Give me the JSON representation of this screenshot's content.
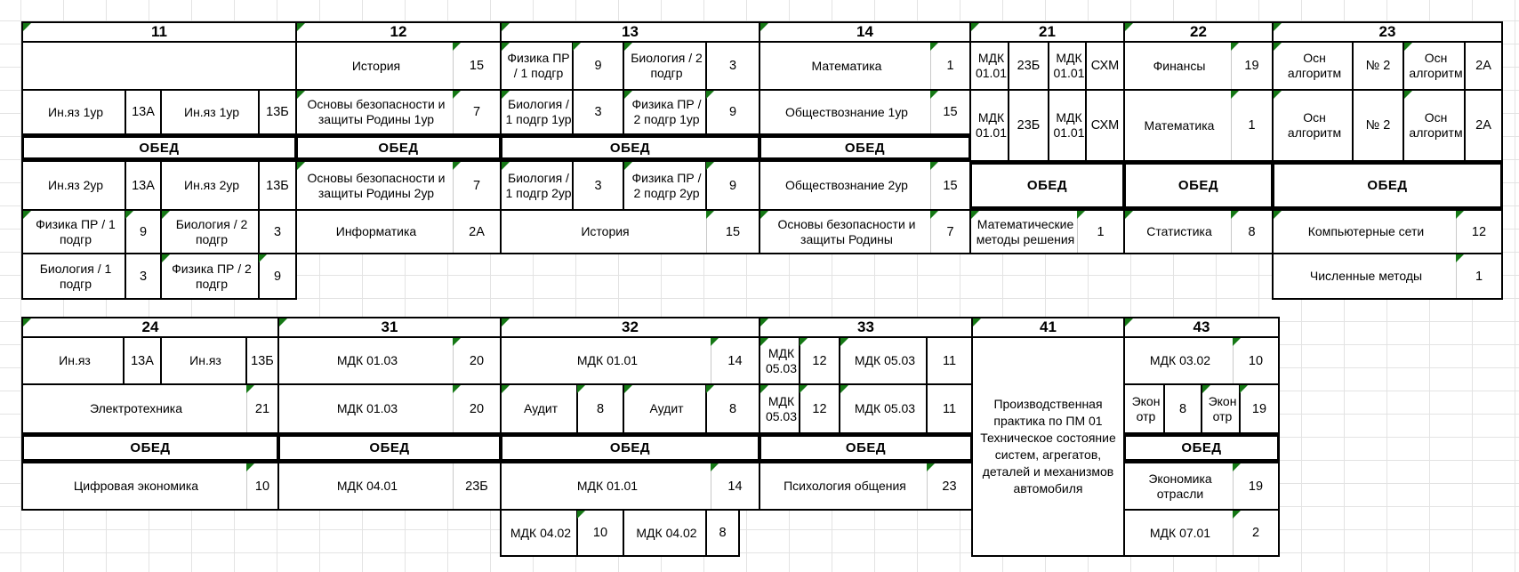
{
  "sheet": {
    "lunch_label": "ОБЕД",
    "colors": {
      "border": "#000000",
      "grid": "#e3e3e3",
      "marker_green": "#157815",
      "background": "#ffffff"
    }
  },
  "top_block": {
    "groups": [
      {
        "id": "11",
        "header_marker": 1,
        "lessons": [
          {
            "row": "r1",
            "type": "blank"
          },
          {
            "row": "r2",
            "type": "pair",
            "cells": [
              {
                "t": "Ин.яз 1ур",
                "room": "13А"
              },
              {
                "t": "Ин.яз 1ур",
                "room": "13Б"
              }
            ]
          },
          {
            "row": "lunchA",
            "type": "lunch"
          },
          {
            "row": "r4",
            "type": "pair",
            "cells": [
              {
                "t": "Ин.яз 2ур",
                "room": "13А"
              },
              {
                "t": "Ин.яз 2ур",
                "room": "13Б"
              }
            ]
          },
          {
            "row": "r5",
            "type": "pair",
            "cells": [
              {
                "t": "Физика ПР / 1 подгр",
                "room": "9",
                "ms": 1,
                "mr": 1
              },
              {
                "t": "Биология / 2 подгр",
                "room": "3",
                "ms": 1
              }
            ]
          },
          {
            "row": "r6",
            "type": "pair",
            "cells": [
              {
                "t": "Биология / 1 подгр",
                "room": "3"
              },
              {
                "t": "Физика ПР / 2 подгр",
                "room": "9",
                "ms": 1,
                "mr": 1
              }
            ]
          }
        ]
      },
      {
        "id": "12",
        "header_marker": 1,
        "lessons": [
          {
            "row": "r1",
            "type": "single",
            "cells": [
              {
                "t": "История",
                "room": "15",
                "mr": 1
              }
            ]
          },
          {
            "row": "r2",
            "type": "single",
            "cells": [
              {
                "t": "Основы безопасности и защиты Родины 1ур",
                "room": "7",
                "ms": 1,
                "mr": 1
              }
            ]
          },
          {
            "row": "lunchA",
            "type": "lunch"
          },
          {
            "row": "r4",
            "type": "single",
            "cells": [
              {
                "t": "Основы безопасности и защиты Родины 2ур",
                "room": "7",
                "ms": 1,
                "mr": 1
              }
            ]
          },
          {
            "row": "r5",
            "type": "single",
            "cells": [
              {
                "t": "Информатика",
                "room": "2А"
              }
            ]
          }
        ]
      },
      {
        "id": "13",
        "header_marker": 1,
        "lessons": [
          {
            "row": "r1",
            "type": "pair",
            "cells": [
              {
                "t": "Физика ПР / 1 подгр",
                "room": "9",
                "ms": 1,
                "mr": 1
              },
              {
                "t": "Биология / 2 подгр",
                "room": "3",
                "ms": 1
              }
            ]
          },
          {
            "row": "r2",
            "type": "pair",
            "cells": [
              {
                "t": "Биология / 1 подгр 1ур",
                "room": "3",
                "ms": 1
              },
              {
                "t": "Физика ПР / 2 подгр 1ур",
                "room": "9",
                "ms": 1,
                "mr": 1
              }
            ]
          },
          {
            "row": "lunchA",
            "type": "lunch"
          },
          {
            "row": "r4",
            "type": "pair",
            "cells": [
              {
                "t": "Биология / 1 подгр 2ур",
                "room": "3",
                "ms": 1
              },
              {
                "t": "Физика ПР / 2 подгр 2ур",
                "room": "9",
                "ms": 1,
                "mr": 1
              }
            ]
          },
          {
            "row": "r5",
            "type": "single",
            "cells": [
              {
                "t": "История",
                "room": "15",
                "mr": 1
              }
            ]
          }
        ]
      },
      {
        "id": "14",
        "header_marker": 1,
        "lessons": [
          {
            "row": "r1",
            "type": "single",
            "cells": [
              {
                "t": "Математика",
                "room": "1",
                "mr": 1
              }
            ]
          },
          {
            "row": "r2",
            "type": "single",
            "cells": [
              {
                "t": "Обществознание 1ур",
                "room": "15",
                "mr": 1
              }
            ]
          },
          {
            "row": "lunchA",
            "type": "lunch"
          },
          {
            "row": "r4",
            "type": "single",
            "cells": [
              {
                "t": "Обществознание 2ур",
                "room": "15",
                "mr": 1
              }
            ]
          },
          {
            "row": "r5",
            "type": "single",
            "cells": [
              {
                "t": "Основы безопасности и защиты Родины",
                "room": "7",
                "ms": 1,
                "mr": 1
              }
            ]
          }
        ]
      },
      {
        "id": "21",
        "header_marker": 1,
        "lessons": [
          {
            "row": "r1",
            "type": "pair",
            "cells": [
              {
                "t": "МДК 01.01",
                "room": "23Б"
              },
              {
                "t": "МДК 01.01",
                "room": "СХМ"
              }
            ]
          },
          {
            "row": "r2t",
            "type": "pair",
            "cells": [
              {
                "t": "МДК 01.01",
                "room": "23Б"
              },
              {
                "t": "МДК 01.01",
                "room": "СХМ"
              }
            ]
          },
          {
            "row": "lunchB",
            "type": "lunch"
          },
          {
            "row": "r5",
            "type": "single",
            "cells": [
              {
                "t": "Математические методы решения",
                "room": "1",
                "ms": 1,
                "mr": 1
              }
            ]
          }
        ]
      },
      {
        "id": "22",
        "header_marker": 1,
        "lessons": [
          {
            "row": "r1",
            "type": "single",
            "cells": [
              {
                "t": "Финансы",
                "room": "19",
                "mr": 1
              }
            ]
          },
          {
            "row": "r2t",
            "type": "single",
            "cells": [
              {
                "t": "Математика",
                "room": "1",
                "mr": 1
              }
            ]
          },
          {
            "row": "lunchB",
            "type": "lunch"
          },
          {
            "row": "r5",
            "type": "single",
            "cells": [
              {
                "t": "Статистика",
                "room": "8",
                "ms": 1,
                "mr": 1
              }
            ]
          }
        ]
      },
      {
        "id": "23",
        "header_marker": 1,
        "lessons": [
          {
            "row": "r1",
            "type": "pair",
            "cells": [
              {
                "t": "Осн алгоритм",
                "room": "№ 2",
                "ms": 1
              },
              {
                "t": "Осн алгоритм",
                "room": "2А",
                "ms": 1
              }
            ]
          },
          {
            "row": "r2t",
            "type": "pair",
            "cells": [
              {
                "t": "Осн алгоритм",
                "room": "№ 2",
                "ms": 1
              },
              {
                "t": "Осн алгоритм",
                "room": "2А",
                "ms": 1
              }
            ]
          },
          {
            "row": "lunchB",
            "type": "lunch"
          },
          {
            "row": "r5",
            "type": "single",
            "cells": [
              {
                "t": "Компьютерные сети",
                "room": "12",
                "ms": 1,
                "mr": 1
              }
            ]
          },
          {
            "row": "r6",
            "type": "single",
            "cells": [
              {
                "t": "Численные методы",
                "room": "1",
                "mr": 1
              }
            ]
          }
        ]
      }
    ]
  },
  "bottom_block": {
    "groups": [
      {
        "id": "24",
        "header_marker": 1,
        "lessons": [
          {
            "row": "r1",
            "type": "pair",
            "cells": [
              {
                "t": "Ин.яз",
                "room": "13А"
              },
              {
                "t": "Ин.яз",
                "room": "13Б"
              }
            ]
          },
          {
            "row": "r2",
            "type": "single",
            "cells": [
              {
                "t": "Электротехника",
                "room": "21",
                "mr": 1
              }
            ]
          },
          {
            "row": "lunch",
            "type": "lunch"
          },
          {
            "row": "r4",
            "type": "single",
            "cells": [
              {
                "t": "Цифровая экономика",
                "room": "10",
                "mr": 1
              }
            ]
          }
        ]
      },
      {
        "id": "31",
        "header_marker": 1,
        "lessons": [
          {
            "row": "r1",
            "type": "single",
            "cells": [
              {
                "t": "МДК 01.03",
                "room": "20",
                "mr": 1
              }
            ]
          },
          {
            "row": "r2",
            "type": "single",
            "cells": [
              {
                "t": "МДК 01.03",
                "room": "20",
                "mr": 1
              }
            ]
          },
          {
            "row": "lunch",
            "type": "lunch"
          },
          {
            "row": "r4",
            "type": "single",
            "cells": [
              {
                "t": "МДК 04.01",
                "room": "23Б"
              }
            ]
          }
        ]
      },
      {
        "id": "32",
        "header_marker": 1,
        "lessons": [
          {
            "row": "r1",
            "type": "single",
            "cells": [
              {
                "t": "МДК 01.01",
                "room": "14",
                "mr": 1
              }
            ]
          },
          {
            "row": "r2",
            "type": "pair",
            "cells": [
              {
                "t": "Аудит",
                "room": "8",
                "ms": 1,
                "mr": 1
              },
              {
                "t": "Аудит",
                "room": "8",
                "ms": 1,
                "mr": 1
              }
            ]
          },
          {
            "row": "lunch",
            "type": "lunch"
          },
          {
            "row": "r4",
            "type": "single",
            "cells": [
              {
                "t": "МДК 01.01",
                "room": "14",
                "mr": 1
              }
            ]
          },
          {
            "row": "r5",
            "type": "pair",
            "cols": "c4b",
            "cells": [
              {
                "t": "МДК 04.02",
                "room": "10",
                "mr": 1
              },
              {
                "t": "МДК 04.02",
                "room": "8"
              }
            ]
          }
        ]
      },
      {
        "id": "33",
        "header_marker": 1,
        "lessons": [
          {
            "row": "r1",
            "type": "pair",
            "cells": [
              {
                "t": "МДК 05.03",
                "room": "12",
                "ms": 1,
                "mr": 1
              },
              {
                "t": "МДК 05.03",
                "room": "11",
                "ms": 1
              }
            ]
          },
          {
            "row": "r2",
            "type": "pair",
            "cells": [
              {
                "t": "МДК 05.03",
                "room": "12",
                "ms": 1,
                "mr": 1
              },
              {
                "t": "МДК 05.03",
                "room": "11",
                "ms": 1
              }
            ]
          },
          {
            "row": "lunch",
            "type": "lunch"
          },
          {
            "row": "r4",
            "type": "single",
            "cells": [
              {
                "t": "Психология общения",
                "room": "23",
                "mr": 1
              }
            ]
          }
        ]
      },
      {
        "id": "41",
        "header_marker": 1,
        "lessons": [
          {
            "row": "full",
            "type": "tall",
            "cells": [
              {
                "t": "Производственная практика по ПМ 01 Техническое состояние систем, агрегатов, деталей и механизмов автомобиля"
              }
            ]
          }
        ]
      },
      {
        "id": "43",
        "header_marker": 1,
        "lessons": [
          {
            "row": "r1",
            "type": "single",
            "cells": [
              {
                "t": "МДК 03.02",
                "room": "10",
                "mr": 1
              }
            ]
          },
          {
            "row": "r2",
            "type": "pair",
            "cells": [
              {
                "t": "Экон отр",
                "room": "8"
              },
              {
                "t": "Экон отр",
                "room": "19",
                "ms": 1,
                "mr": 1
              }
            ]
          },
          {
            "row": "lunch",
            "type": "lunch"
          },
          {
            "row": "r4",
            "type": "single",
            "cells": [
              {
                "t": "Экономика отрасли",
                "room": "19",
                "mr": 1
              }
            ]
          },
          {
            "row": "r5",
            "type": "single",
            "cells": [
              {
                "t": "МДК 07.01",
                "room": "2",
                "mr": 1
              }
            ]
          }
        ]
      }
    ]
  }
}
